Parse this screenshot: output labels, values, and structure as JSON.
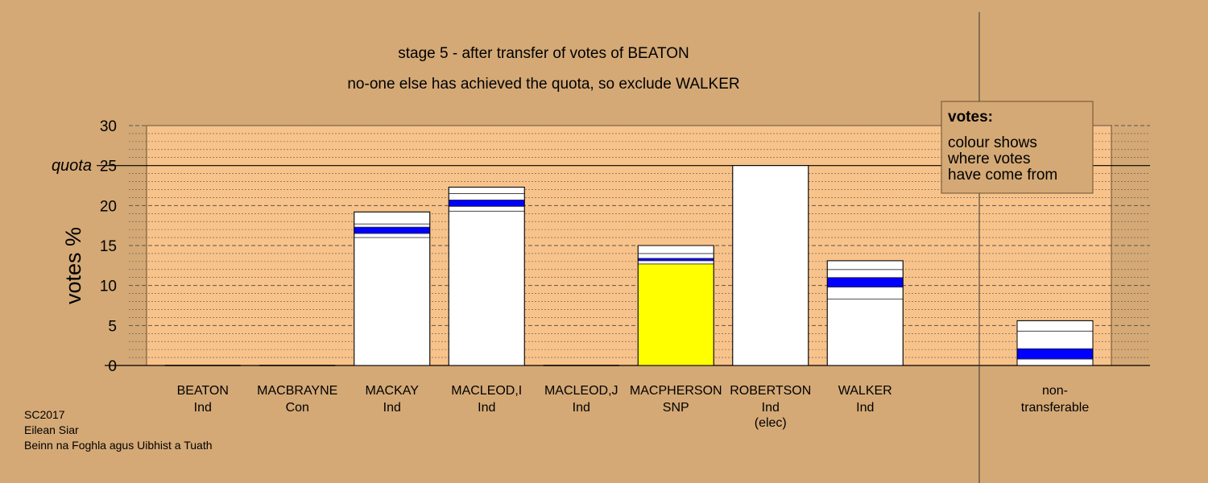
{
  "chart_data": {
    "type": "bar",
    "title": "stage 5 - after transfer of votes of BEATON",
    "subtitle": "no-one else has achieved the quota, so exclude WALKER",
    "ylabel": "votes %",
    "ylim": [
      0,
      30
    ],
    "yticks": [
      0,
      5,
      10,
      15,
      20,
      25,
      30
    ],
    "quota": 25,
    "quota_label": "quota",
    "grid": true,
    "colors": {
      "background": "#d4a976",
      "plot_area": "#f8c38a",
      "own_votes": "#ffffff",
      "transfer_highlight": "#0000ff",
      "snp": "#ffff00"
    },
    "categories": [
      {
        "name": "BEATON",
        "party": "Ind",
        "note": ""
      },
      {
        "name": "MACBRAYNE",
        "party": "Con",
        "note": ""
      },
      {
        "name": "MACKAY",
        "party": "Ind",
        "note": ""
      },
      {
        "name": "MACLEOD,I",
        "party": "Ind",
        "note": ""
      },
      {
        "name": "MACLEOD,J",
        "party": "Ind",
        "note": ""
      },
      {
        "name": "MACPHERSON",
        "party": "SNP",
        "note": ""
      },
      {
        "name": "ROBERTSON",
        "party": "Ind",
        "note": "(elec)"
      },
      {
        "name": "WALKER",
        "party": "Ind",
        "note": ""
      }
    ],
    "bars": [
      {
        "total": 0,
        "segments": []
      },
      {
        "total": 0,
        "segments": []
      },
      {
        "total": 19.2,
        "segments": [
          {
            "from": 0,
            "to": 16.0,
            "color": "#ffffff"
          },
          {
            "from": 16.0,
            "to": 16.5,
            "color": "#ffffff"
          },
          {
            "from": 16.5,
            "to": 17.3,
            "color": "#0000ff"
          },
          {
            "from": 17.3,
            "to": 17.7,
            "color": "#ffffff"
          },
          {
            "from": 17.7,
            "to": 19.2,
            "color": "#ffffff"
          }
        ]
      },
      {
        "total": 22.3,
        "segments": [
          {
            "from": 0,
            "to": 19.3,
            "color": "#ffffff"
          },
          {
            "from": 19.3,
            "to": 19.9,
            "color": "#ffffff"
          },
          {
            "from": 19.9,
            "to": 20.7,
            "color": "#0000ff"
          },
          {
            "from": 20.7,
            "to": 21.5,
            "color": "#ffffff"
          },
          {
            "from": 21.5,
            "to": 22.3,
            "color": "#ffffff"
          }
        ]
      },
      {
        "total": 0,
        "segments": []
      },
      {
        "total": 15.0,
        "segments": [
          {
            "from": 0,
            "to": 12.7,
            "color": "#ffff00"
          },
          {
            "from": 12.7,
            "to": 13.1,
            "color": "#ffffff"
          },
          {
            "from": 13.1,
            "to": 13.4,
            "color": "#0000ff"
          },
          {
            "from": 13.4,
            "to": 14.0,
            "color": "#ffffff"
          },
          {
            "from": 14.0,
            "to": 15.0,
            "color": "#ffffff"
          }
        ]
      },
      {
        "total": 25.0,
        "segments": [
          {
            "from": 0,
            "to": 25.0,
            "color": "#ffffff"
          }
        ]
      },
      {
        "total": 13.1,
        "segments": [
          {
            "from": 0,
            "to": 8.3,
            "color": "#ffffff"
          },
          {
            "from": 8.3,
            "to": 9.8,
            "color": "#ffffff"
          },
          {
            "from": 9.8,
            "to": 11.0,
            "color": "#0000ff"
          },
          {
            "from": 11.0,
            "to": 12.0,
            "color": "#ffffff"
          },
          {
            "from": 12.0,
            "to": 13.1,
            "color": "#ffffff"
          }
        ]
      }
    ],
    "non_transferable": {
      "label_line1": "non-",
      "label_line2": "transferable",
      "total": 5.6,
      "segments": [
        {
          "from": 0,
          "to": 0.8,
          "color": "#ffffff"
        },
        {
          "from": 0.8,
          "to": 2.1,
          "color": "#0000ff"
        },
        {
          "from": 2.1,
          "to": 4.3,
          "color": "#ffffff"
        },
        {
          "from": 4.3,
          "to": 5.6,
          "color": "#ffffff"
        }
      ]
    },
    "legend": {
      "title": "votes:",
      "lines": [
        "colour shows",
        "where votes",
        "have come from"
      ]
    }
  },
  "footer": {
    "line1": "SC2017",
    "line2": "Eilean Siar",
    "line3": "Beinn na Foghla agus Uibhist a Tuath"
  }
}
